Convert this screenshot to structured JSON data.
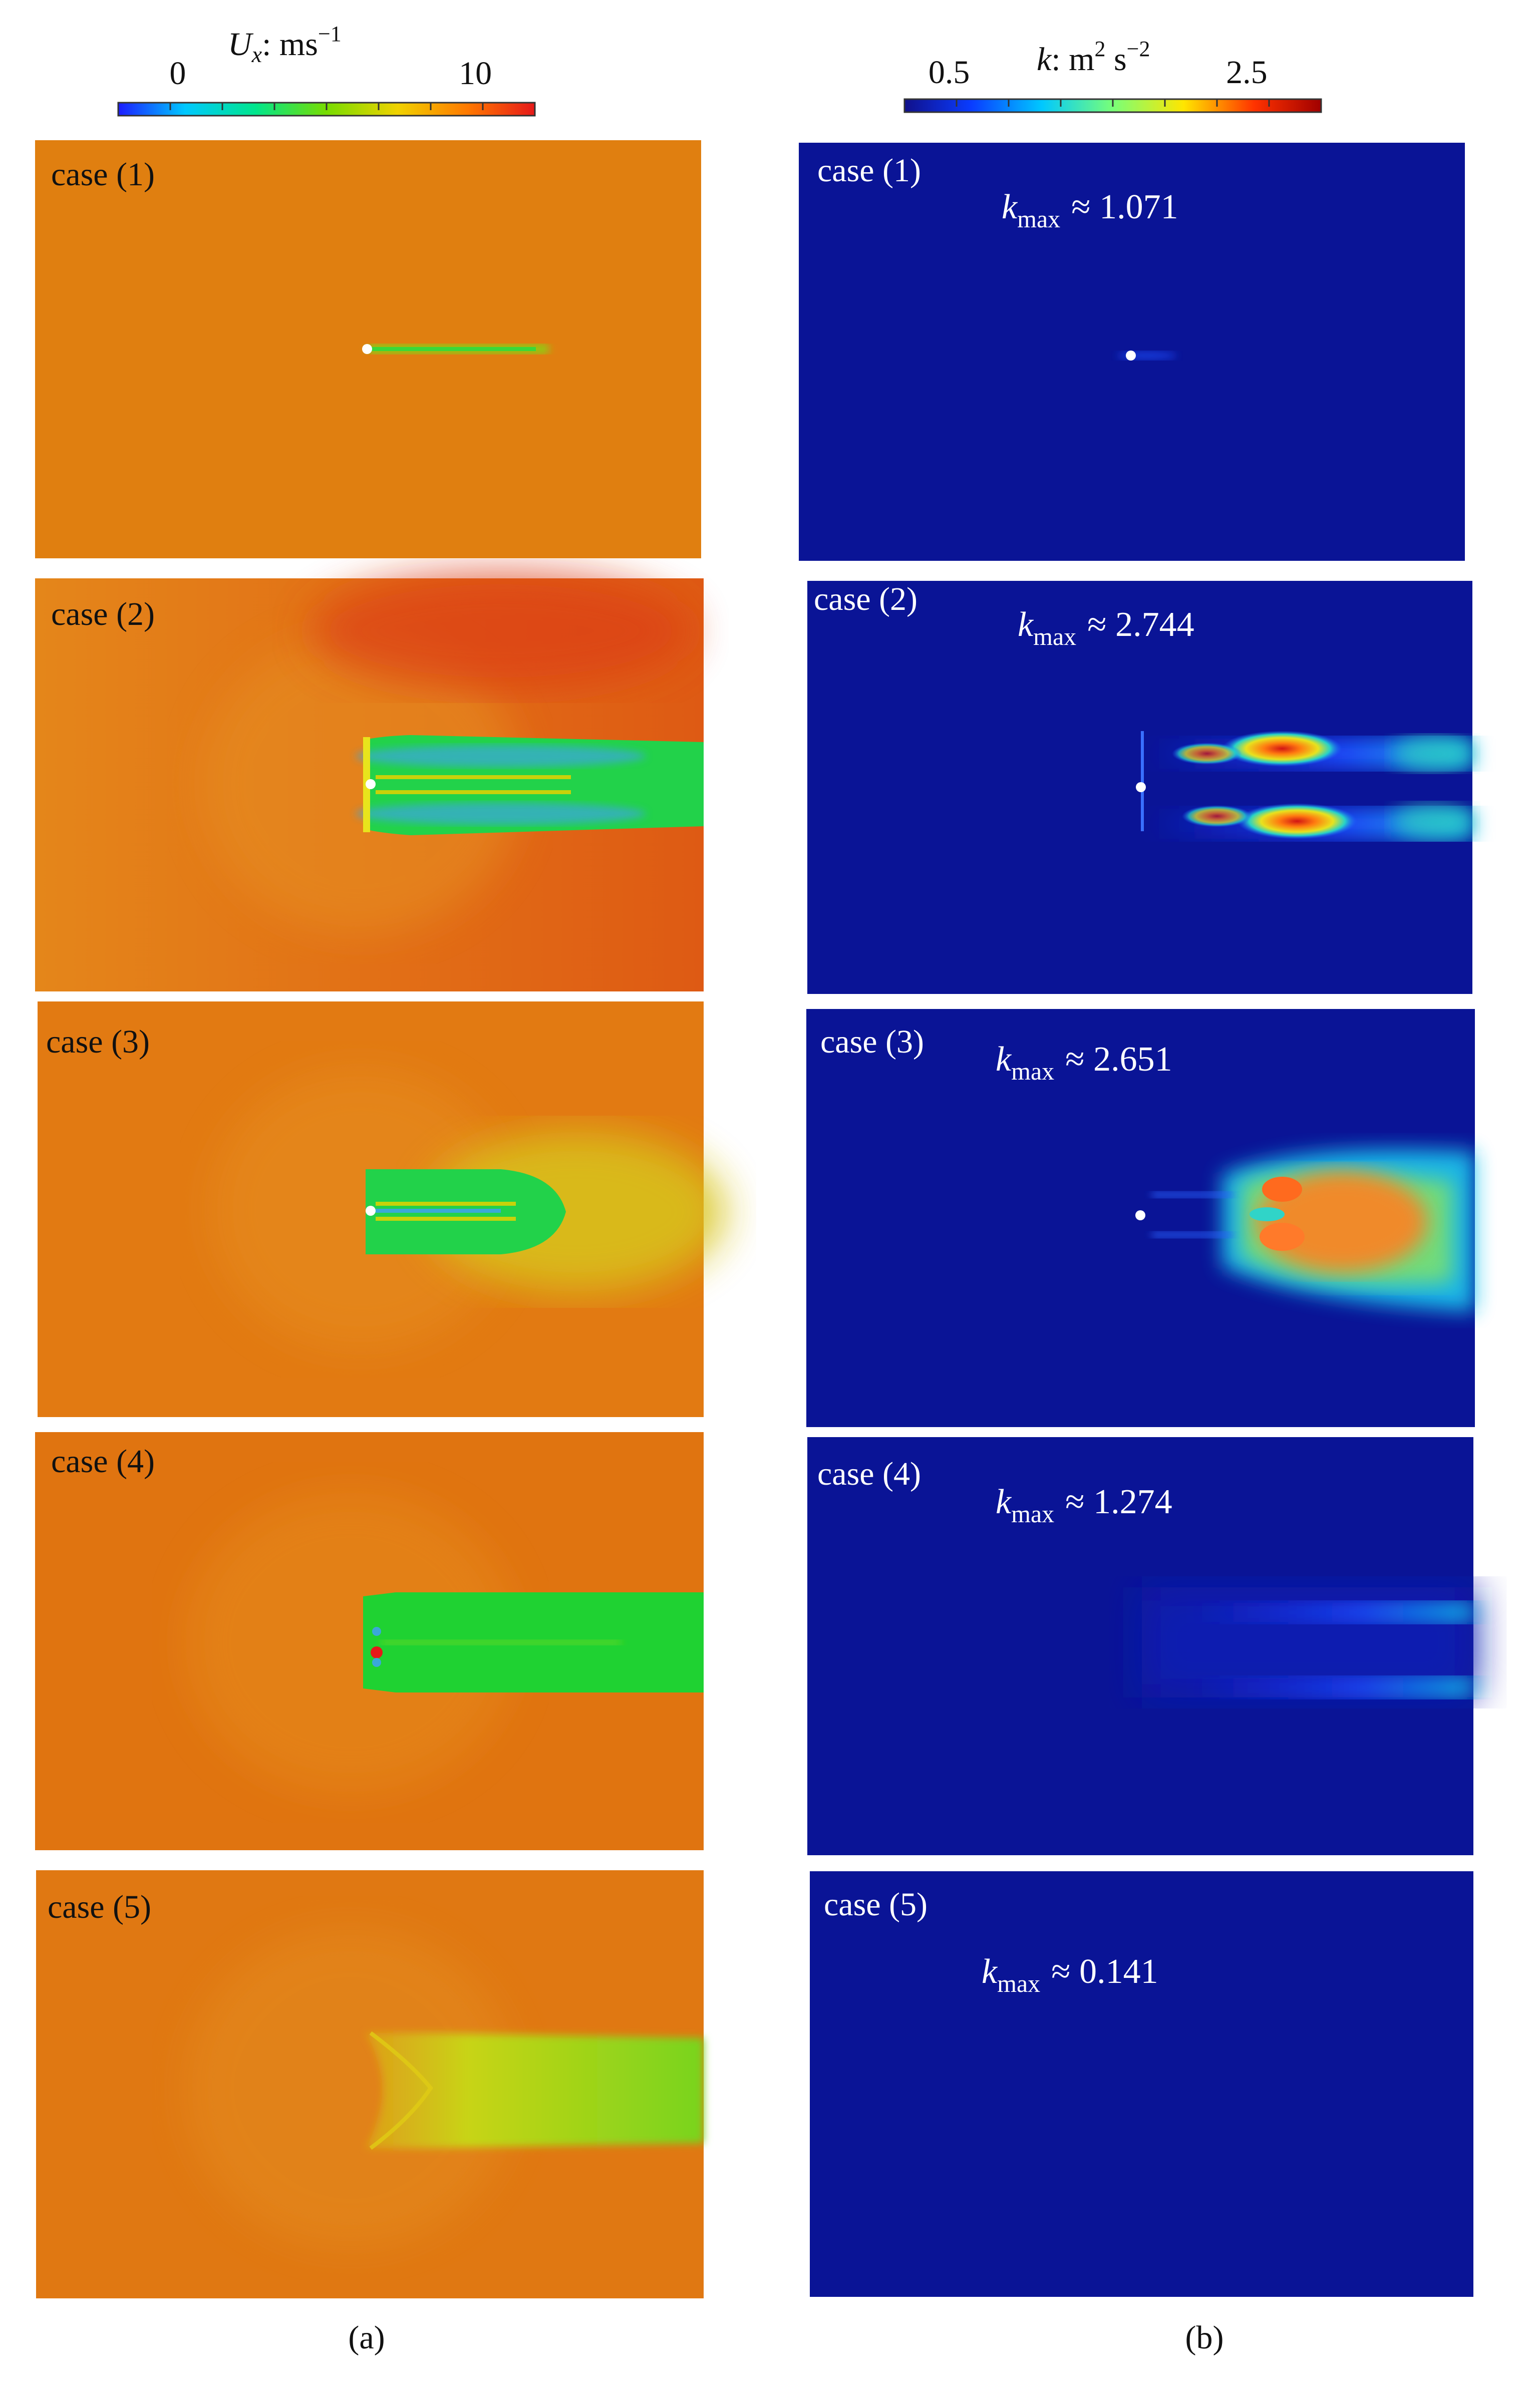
{
  "figure": {
    "column_a": {
      "label": "(a)",
      "colorbar": {
        "title_var": "U",
        "title_sub": "x",
        "title_unit": ": ms",
        "title_exp": "−1",
        "ticks": [
          "0",
          "10"
        ],
        "tick_values": [
          0,
          10
        ],
        "range": [
          -2,
          12
        ],
        "colormap": [
          "#1c1cff",
          "#00c8ff",
          "#00e68c",
          "#78dc00",
          "#f0d200",
          "#ff7800",
          "#e61919"
        ]
      },
      "panels": [
        {
          "case": "case (1)",
          "background": "#e07f10"
        },
        {
          "case": "case (2)",
          "background": "#e17212"
        },
        {
          "case": "case (3)",
          "background": "#e27a12"
        },
        {
          "case": "case (4)",
          "background": "#e07410"
        },
        {
          "case": "case (5)",
          "background": "#e07812"
        }
      ]
    },
    "column_b": {
      "label": "(b)",
      "colorbar": {
        "title_var": "k",
        "title_unit": ": m",
        "title_exp1": "2",
        "title_mid": " s",
        "title_exp2": "−2",
        "ticks": [
          "0.5",
          "2.5"
        ],
        "tick_values": [
          0.5,
          2.5
        ],
        "range": [
          0.2,
          3.0
        ],
        "colormap": [
          "#10108a",
          "#0a3cff",
          "#00c8ff",
          "#78ff78",
          "#ffe600",
          "#ff3200",
          "#a00000"
        ]
      },
      "panels": [
        {
          "case": "case (1)",
          "kmax_sym": "k",
          "kmax_sub": "max",
          "kmax_value": "≈ 1.071",
          "background": "#0a1496"
        },
        {
          "case": "case (2)",
          "kmax_sym": "k",
          "kmax_sub": "max",
          "kmax_value": "≈ 2.744",
          "background": "#0a1496"
        },
        {
          "case": "case (3)",
          "kmax_sym": "k",
          "kmax_sub": "max",
          "kmax_value": "≈ 2.651",
          "background": "#0a1496"
        },
        {
          "case": "case (4)",
          "kmax_sym": "k",
          "kmax_sub": "max",
          "kmax_value": "≈ 1.274",
          "background": "#0a1496"
        },
        {
          "case": "case (5)",
          "kmax_sym": "k",
          "kmax_sub": "max",
          "kmax_value": "≈ 0.141",
          "background": "#0a1496"
        }
      ]
    }
  }
}
